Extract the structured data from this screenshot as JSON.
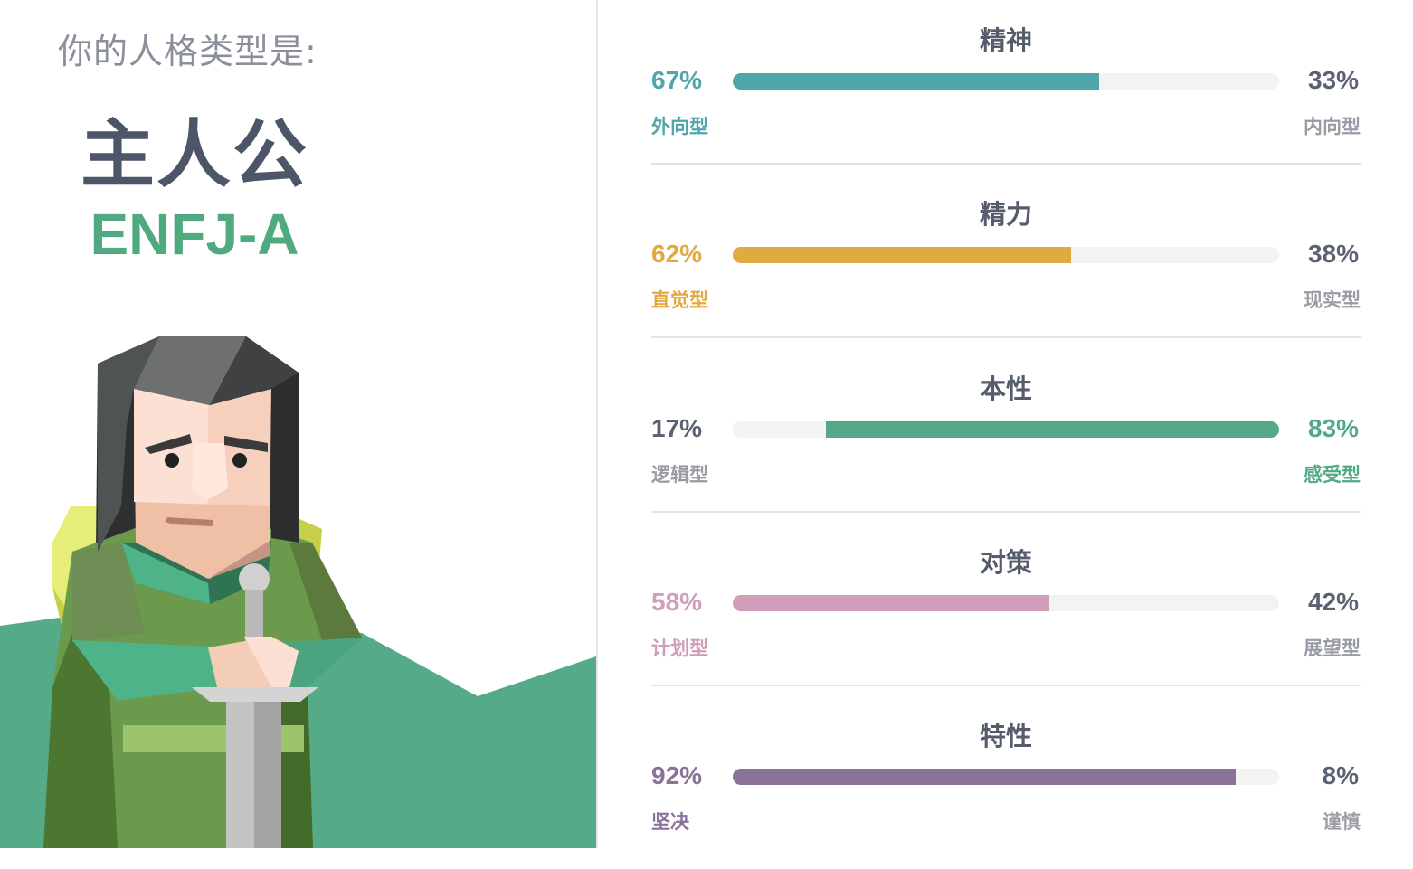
{
  "result": {
    "intro": "你的人格类型是:",
    "name": "主人公",
    "code": "ENFJ-A"
  },
  "colors": {
    "mind": "#4fa7aa",
    "energy": "#e2a941",
    "nature": "#53a985",
    "tactics": "#d09eb8",
    "identity": "#8a7298",
    "track": "#f3f3f4",
    "background_hill": "#55aa88"
  },
  "traits": [
    {
      "title": "精神",
      "left_pct": "67%",
      "right_pct": "33%",
      "left_label": "外向型",
      "right_label": "内向型",
      "value": 67,
      "direction": "left",
      "color_key": "mind"
    },
    {
      "title": "精力",
      "left_pct": "62%",
      "right_pct": "38%",
      "left_label": "直觉型",
      "right_label": "现实型",
      "value": 62,
      "direction": "left",
      "color_key": "energy"
    },
    {
      "title": "本性",
      "left_pct": "17%",
      "right_pct": "83%",
      "left_label": "逻辑型",
      "right_label": "感受型",
      "value": 83,
      "direction": "right",
      "color_key": "nature"
    },
    {
      "title": "对策",
      "left_pct": "58%",
      "right_pct": "42%",
      "left_label": "计划型",
      "right_label": "展望型",
      "value": 58,
      "direction": "left",
      "color_key": "tactics"
    },
    {
      "title": "特性",
      "left_pct": "92%",
      "right_pct": "8%",
      "left_label": "坚决",
      "right_label": "谨慎",
      "value": 92,
      "direction": "left",
      "color_key": "identity"
    }
  ],
  "illustration": {
    "icon": "protagonist-character-illustration"
  }
}
